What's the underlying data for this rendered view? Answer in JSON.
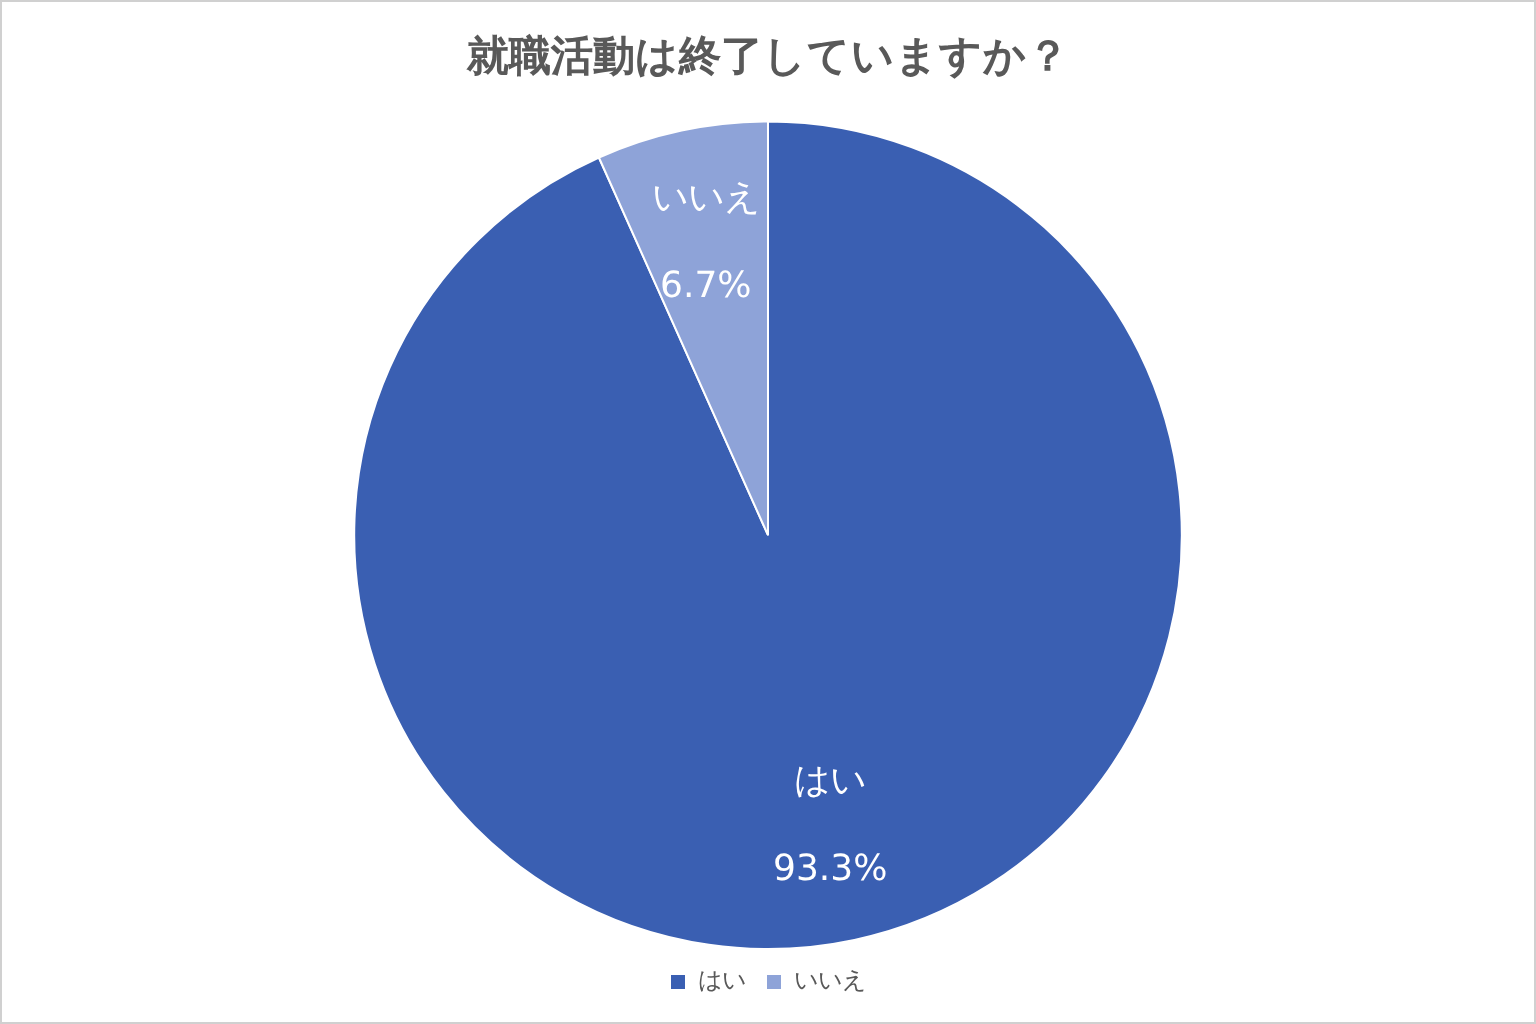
{
  "chart_data": {
    "type": "pie",
    "title": "就職活動は終了していますか？",
    "categories": [
      "はい",
      "いいえ"
    ],
    "values": [
      93.3,
      6.7
    ],
    "value_labels": [
      "93.3%",
      "6.7%"
    ],
    "colors": [
      "#3a5fb2",
      "#8ea3d8"
    ],
    "legend": "bottom"
  }
}
